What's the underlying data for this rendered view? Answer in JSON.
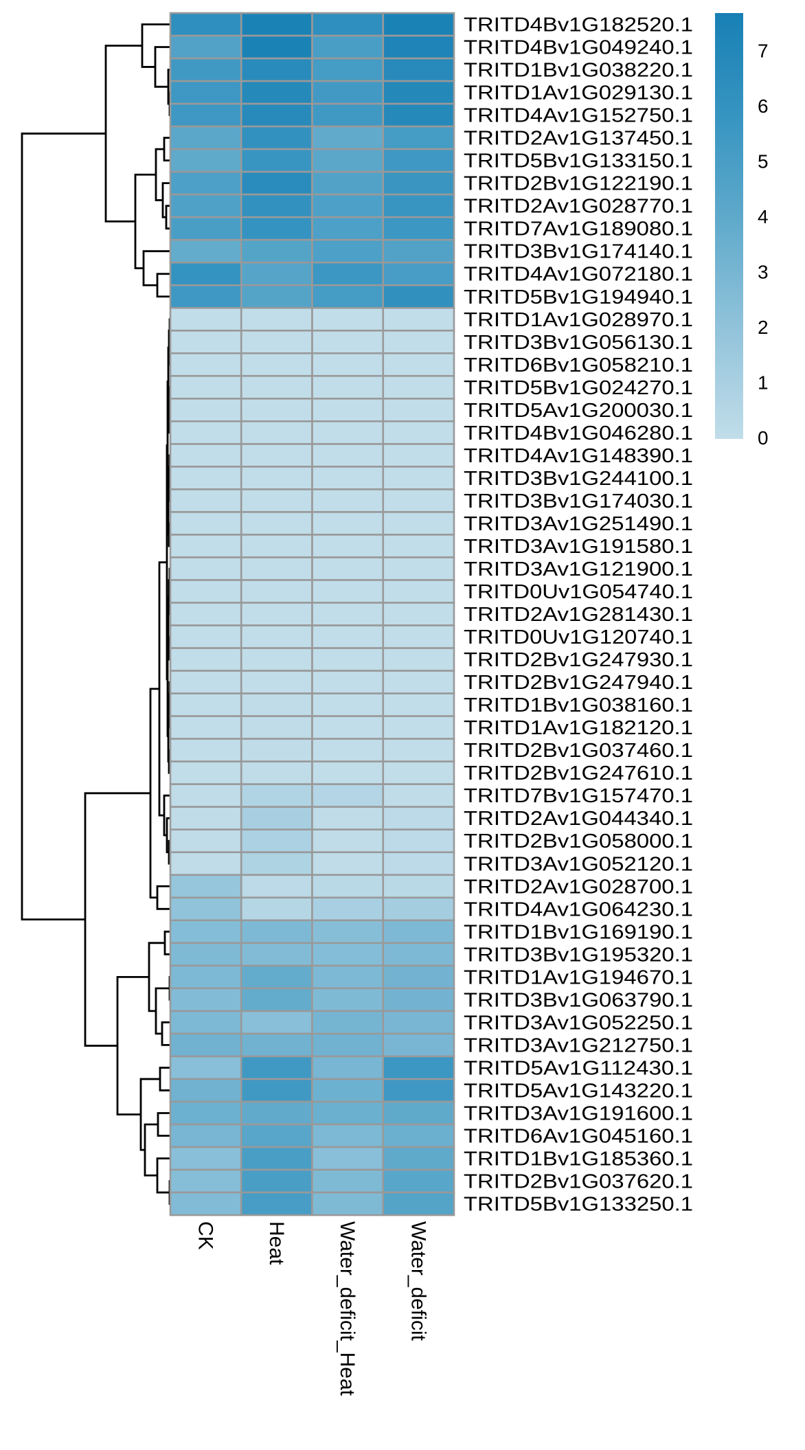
{
  "chart_data": {
    "type": "heatmap",
    "title": "",
    "columns": [
      "CK",
      "Heat",
      "Water_deficit_Heat",
      "Water_deficit"
    ],
    "rows": [
      "TRITD4Bv1G182520.1",
      "TRITD4Bv1G049240.1",
      "TRITD1Bv1G038220.1",
      "TRITD1Av1G029130.1",
      "TRITD4Av1G152750.1",
      "TRITD2Av1G137450.1",
      "TRITD5Bv1G133150.1",
      "TRITD2Bv1G122190.1",
      "TRITD2Av1G028770.1",
      "TRITD7Av1G189080.1",
      "TRITD3Bv1G174140.1",
      "TRITD4Av1G072180.1",
      "TRITD5Bv1G194940.1",
      "TRITD1Av1G028970.1",
      "TRITD3Bv1G056130.1",
      "TRITD6Bv1G058210.1",
      "TRITD5Bv1G024270.1",
      "TRITD5Av1G200030.1",
      "TRITD4Bv1G046280.1",
      "TRITD4Av1G148390.1",
      "TRITD3Bv1G244100.1",
      "TRITD3Bv1G174030.1",
      "TRITD3Av1G251490.1",
      "TRITD3Av1G191580.1",
      "TRITD3Av1G121900.1",
      "TRITD0Uv1G054740.1",
      "TRITD2Av1G281430.1",
      "TRITD0Uv1G120740.1",
      "TRITD2Bv1G247930.1",
      "TRITD2Bv1G247940.1",
      "TRITD1Bv1G038160.1",
      "TRITD1Av1G182120.1",
      "TRITD2Bv1G037460.1",
      "TRITD2Bv1G247610.1",
      "TRITD7Bv1G157470.1",
      "TRITD2Av1G044340.1",
      "TRITD2Bv1G058000.1",
      "TRITD3Av1G052120.1",
      "TRITD2Av1G028700.1",
      "TRITD4Av1G064230.1",
      "TRITD1Bv1G169190.1",
      "TRITD3Bv1G195320.1",
      "TRITD1Av1G194670.1",
      "TRITD3Bv1G063790.1",
      "TRITD3Av1G052250.1",
      "TRITD3Av1G212750.1",
      "TRITD5Av1G112430.1",
      "TRITD5Av1G143220.1",
      "TRITD3Av1G191600.1",
      "TRITD6Av1G045160.1",
      "TRITD1Bv1G185360.1",
      "TRITD2Bv1G037620.1",
      "TRITD5Bv1G133250.1"
    ],
    "values": [
      [
        6.3,
        7.5,
        6.3,
        7.5
      ],
      [
        4.6,
        7.5,
        5.0,
        7.3
      ],
      [
        5.4,
        6.7,
        5.2,
        6.8
      ],
      [
        5.5,
        6.9,
        5.3,
        7.0
      ],
      [
        5.5,
        6.8,
        5.4,
        6.9
      ],
      [
        4.2,
        6.1,
        3.9,
        5.2
      ],
      [
        4.0,
        5.8,
        4.2,
        5.5
      ],
      [
        4.8,
        6.6,
        4.6,
        5.7
      ],
      [
        4.7,
        6.1,
        4.8,
        5.8
      ],
      [
        5.0,
        6.0,
        4.8,
        5.6
      ],
      [
        3.8,
        4.5,
        4.8,
        4.6
      ],
      [
        6.0,
        4.4,
        5.6,
        5.1
      ],
      [
        5.5,
        4.5,
        5.2,
        6.2
      ],
      [
        0,
        0,
        0,
        0
      ],
      [
        0,
        0,
        0,
        0
      ],
      [
        0,
        0,
        0,
        0
      ],
      [
        0,
        0,
        0,
        0
      ],
      [
        0,
        0,
        0,
        0
      ],
      [
        0,
        0,
        0,
        0
      ],
      [
        0,
        0,
        0,
        0
      ],
      [
        0,
        0,
        0,
        0
      ],
      [
        0,
        0,
        0,
        0
      ],
      [
        0,
        0,
        0,
        0
      ],
      [
        0,
        0,
        0,
        0
      ],
      [
        0,
        0,
        0,
        0
      ],
      [
        0,
        0,
        0,
        0
      ],
      [
        0,
        0,
        0,
        0
      ],
      [
        0,
        0,
        0,
        0
      ],
      [
        0,
        0,
        0,
        0
      ],
      [
        0,
        0,
        0,
        0
      ],
      [
        0,
        0.1,
        0,
        0
      ],
      [
        0,
        0.1,
        0,
        0
      ],
      [
        0,
        0.1,
        0,
        0
      ],
      [
        0,
        0.1,
        0,
        0
      ],
      [
        0.1,
        0.7,
        0.6,
        0.1
      ],
      [
        0.1,
        1.1,
        0.1,
        0.2
      ],
      [
        0.1,
        0.9,
        0.1,
        0.2
      ],
      [
        0.1,
        0.8,
        0.1,
        0.2
      ],
      [
        1.8,
        0.2,
        0.3,
        0.3
      ],
      [
        2.0,
        0.5,
        1.0,
        1.2
      ],
      [
        2.5,
        2.8,
        2.4,
        2.8
      ],
      [
        2.7,
        2.6,
        2.5,
        2.8
      ],
      [
        2.8,
        3.8,
        2.8,
        3.2
      ],
      [
        2.6,
        3.8,
        2.7,
        3.2
      ],
      [
        2.8,
        2.3,
        3.1,
        3.0
      ],
      [
        3.3,
        3.3,
        3.3,
        3.0
      ],
      [
        2.3,
        5.4,
        3.0,
        5.6
      ],
      [
        3.3,
        5.4,
        3.4,
        5.5
      ],
      [
        3.4,
        3.9,
        3.5,
        4.0
      ],
      [
        3.0,
        4.3,
        2.8,
        3.5
      ],
      [
        2.3,
        5.0,
        2.3,
        4.0
      ],
      [
        2.4,
        5.0,
        2.7,
        4.3
      ],
      [
        2.6,
        5.1,
        2.7,
        4.5
      ]
    ],
    "value_range": [
      0,
      7.7
    ],
    "legend": {
      "placement": "top-right",
      "ticks": [
        "0",
        "1",
        "2",
        "3",
        "4",
        "5",
        "6",
        "7"
      ]
    },
    "palette": {
      "low": "#c1dde9",
      "stops": [
        "#c1dde9",
        "#93c4db",
        "#62abcc",
        "#3895c1",
        "#1880b5"
      ],
      "cell_border": "#999999"
    },
    "row_dendrogram": true
  }
}
